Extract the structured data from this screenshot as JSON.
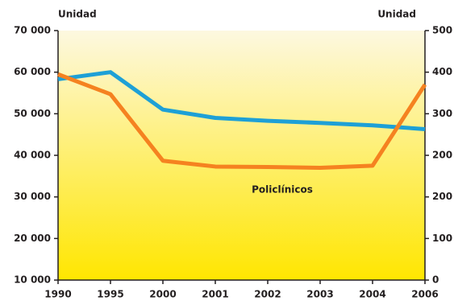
{
  "chart_data": {
    "type": "line",
    "y_label": "Unidad",
    "y2_label": "Unidad",
    "categories": [
      "1990",
      "1995",
      "2000",
      "2001",
      "2002",
      "2003",
      "2004",
      "2006"
    ],
    "series": [
      {
        "color": "#1ea0d6",
        "values": [
          58300,
          60000,
          51000,
          49000,
          48300,
          47800,
          47200,
          46300
        ]
      },
      {
        "name": "Policlínicos",
        "color": "#f58220",
        "values": [
          59500,
          54700,
          38700,
          37300,
          37200,
          37000,
          37500,
          57000
        ]
      }
    ],
    "ylim": [
      10000,
      70000
    ],
    "yticks": [
      {
        "value": 10000,
        "label": "10 000"
      },
      {
        "value": 20000,
        "label": "20 000"
      },
      {
        "value": 30000,
        "label": "30 000"
      },
      {
        "value": 40000,
        "label": "40 000"
      },
      {
        "value": 50000,
        "label": "50 000"
      },
      {
        "value": 60000,
        "label": "60 000"
      },
      {
        "value": 70000,
        "label": "70 000"
      }
    ],
    "y2ticklabels": [
      "0",
      "100",
      "200",
      "200",
      "300",
      "400",
      "500"
    ]
  }
}
